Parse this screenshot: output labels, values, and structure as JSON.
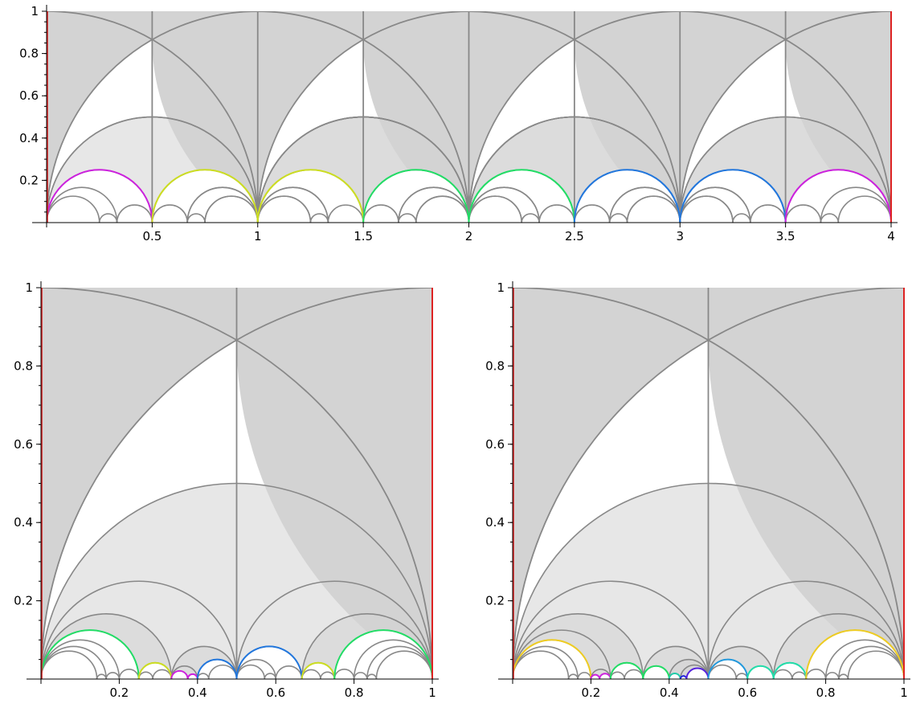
{
  "chart_data": [
    {
      "type": "diagram",
      "panel": "top",
      "xlim": [
        0,
        4
      ],
      "ylim": [
        0,
        1
      ],
      "x_ticks": [
        0.5,
        1,
        1.5,
        2,
        2.5,
        3,
        3.5,
        4
      ],
      "x_tick_labels": [
        "0.5",
        "1",
        "1.5",
        "2",
        "2.5",
        "3",
        "3.5",
        "4"
      ],
      "y_ticks": [
        0.2,
        0.4,
        0.6,
        0.8,
        1
      ],
      "y_tick_labels": [
        "0.2",
        "0.4",
        "0.6",
        "0.8",
        "1"
      ],
      "boundary_color": "#dd2222",
      "cusps": [
        {
          "a": 0,
          "b": 0.5,
          "color": "#cc22dd"
        },
        {
          "a": 0.5,
          "b": 1,
          "color": "#ccdd22"
        },
        {
          "a": 1,
          "b": 1.5,
          "color": "#ccdd22"
        },
        {
          "a": 1.5,
          "b": 2,
          "color": "#22dd66"
        },
        {
          "a": 2,
          "b": 2.5,
          "color": "#22dd66"
        },
        {
          "a": 2.5,
          "b": 3,
          "color": "#2277dd"
        },
        {
          "a": 3,
          "b": 3.5,
          "color": "#2277dd"
        },
        {
          "a": 3.5,
          "b": 4,
          "color": "#cc22dd"
        }
      ]
    },
    {
      "type": "diagram",
      "panel": "bottom-left",
      "xlim": [
        0,
        1
      ],
      "ylim": [
        0,
        1
      ],
      "x_ticks": [
        0.2,
        0.4,
        0.6,
        0.8,
        1
      ],
      "x_tick_labels": [
        "0.2",
        "0.4",
        "0.6",
        "0.8",
        "1"
      ],
      "y_ticks": [
        0.2,
        0.4,
        0.6,
        0.8,
        1
      ],
      "y_tick_labels": [
        "0.2",
        "0.4",
        "0.6",
        "0.8",
        "1"
      ],
      "boundary_color": "#dd2222",
      "cusps": [
        {
          "a": 0,
          "b": 0.25,
          "color": "#22dd66"
        },
        {
          "a": 0.25,
          "b": 0.3333,
          "color": "#ccdd22"
        },
        {
          "a": 0.3333,
          "b": 0.375,
          "color": "#cc22dd"
        },
        {
          "a": 0.375,
          "b": 0.4,
          "color": "#cc22dd"
        },
        {
          "a": 0.4,
          "b": 0.5,
          "color": "#2277dd"
        },
        {
          "a": 0.5,
          "b": 0.6667,
          "color": "#2277dd"
        },
        {
          "a": 0.6667,
          "b": 0.75,
          "color": "#ccdd22"
        },
        {
          "a": 0.75,
          "b": 1,
          "color": "#22dd66"
        }
      ]
    },
    {
      "type": "diagram",
      "panel": "bottom-right",
      "xlim": [
        0,
        1
      ],
      "ylim": [
        0,
        1
      ],
      "x_ticks": [
        0.2,
        0.4,
        0.6,
        0.8,
        1
      ],
      "x_tick_labels": [
        "0.2",
        "0.4",
        "0.6",
        "0.8",
        "1"
      ],
      "y_ticks": [
        0.2,
        0.4,
        0.6,
        0.8,
        1
      ],
      "y_tick_labels": [
        "0.2",
        "0.4",
        "0.6",
        "0.8",
        "1"
      ],
      "boundary_color": "#dd2222",
      "cusps": [
        {
          "a": 0,
          "b": 0.2,
          "color": "#eecc22"
        },
        {
          "a": 0.2,
          "b": 0.2222,
          "color": "#cc22dd"
        },
        {
          "a": 0.2222,
          "b": 0.25,
          "color": "#cc22dd"
        },
        {
          "a": 0.25,
          "b": 0.3333,
          "color": "#22dd66"
        },
        {
          "a": 0.3333,
          "b": 0.4,
          "color": "#22dd66"
        },
        {
          "a": 0.4,
          "b": 0.4286,
          "color": "#22ccaa"
        },
        {
          "a": 0.4286,
          "b": 0.4444,
          "color": "#2222dd"
        },
        {
          "a": 0.4444,
          "b": 0.5,
          "color": "#5522dd"
        },
        {
          "a": 0.5,
          "b": 0.6,
          "color": "#2299dd"
        },
        {
          "a": 0.6,
          "b": 0.6667,
          "color": "#22ddaa"
        },
        {
          "a": 0.6667,
          "b": 0.75,
          "color": "#22ddaa"
        },
        {
          "a": 0.75,
          "b": 1,
          "color": "#eecc22"
        }
      ]
    }
  ]
}
